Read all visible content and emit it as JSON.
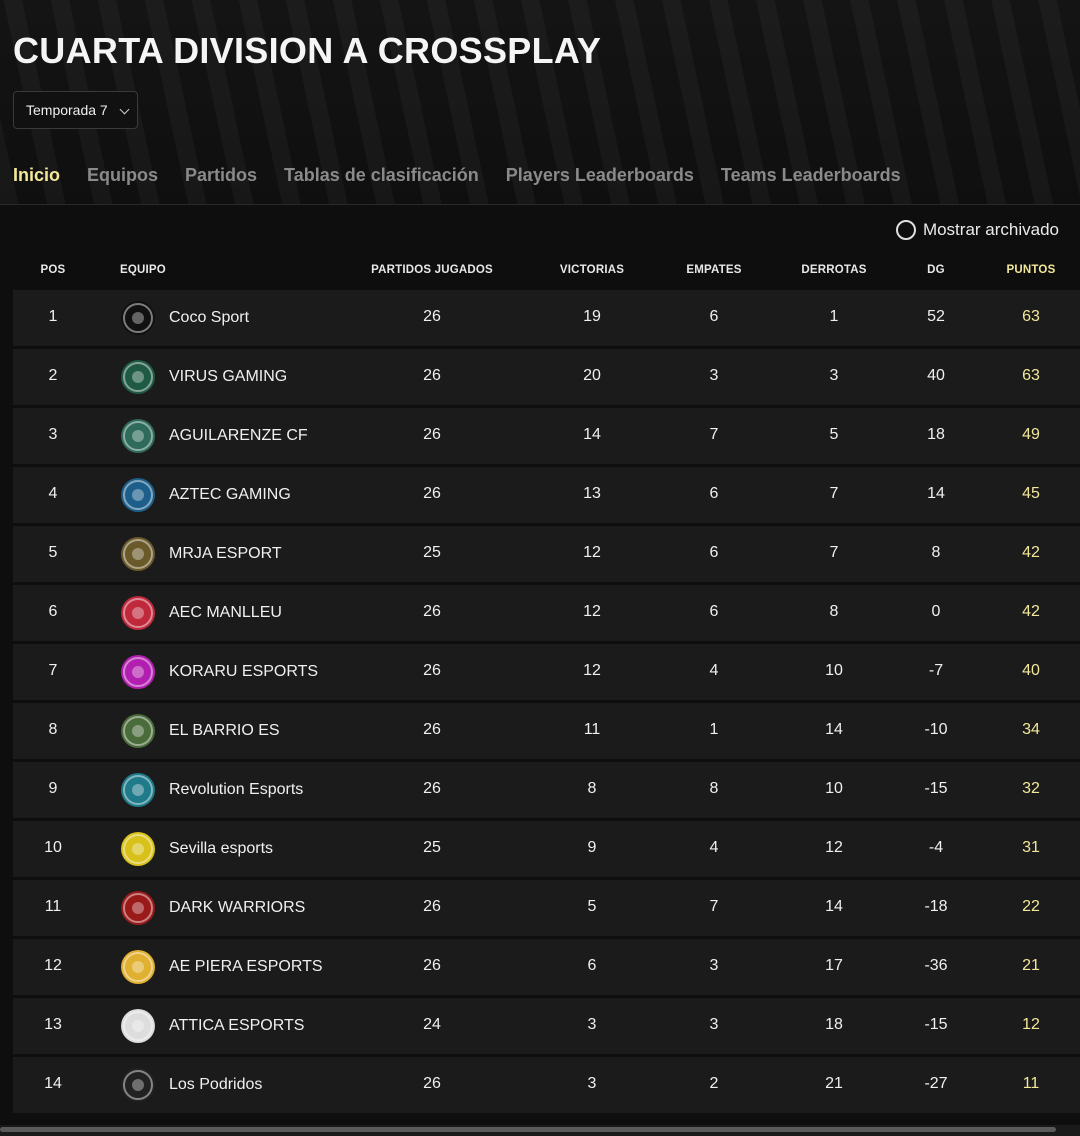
{
  "page": {
    "title": "CUARTA DIVISION A CROSSPLAY",
    "season": "Temporada 7"
  },
  "tabs": [
    {
      "label": "Inicio",
      "active": true
    },
    {
      "label": "Equipos",
      "active": false
    },
    {
      "label": "Partidos",
      "active": false
    },
    {
      "label": "Tablas de clasificación",
      "active": false
    },
    {
      "label": "Players Leaderboards",
      "active": false
    },
    {
      "label": "Teams Leaderboards",
      "active": false
    }
  ],
  "archive_toggle": {
    "label": "Mostrar archivado",
    "checked": false
  },
  "table": {
    "headers": {
      "pos": "POS",
      "team": "EQUIPO",
      "played": "PARTIDOS JUGADOS",
      "wins": "VICTORIAS",
      "draws": "EMPATES",
      "losses": "DERROTAS",
      "gd": "DG",
      "points": "PUNTOS"
    },
    "rows": [
      {
        "pos": "1",
        "team": "Coco Sport",
        "logo": "coco-sport-logo",
        "logo_color": "#111111",
        "played": "26",
        "wins": "19",
        "draws": "6",
        "losses": "1",
        "gd": "52",
        "points": "63"
      },
      {
        "pos": "2",
        "team": "VIRUS GAMING",
        "logo": "virus-gaming-logo",
        "logo_color": "#1f5a44",
        "played": "26",
        "wins": "20",
        "draws": "3",
        "losses": "3",
        "gd": "40",
        "points": "63"
      },
      {
        "pos": "3",
        "team": "AGUILARENZE CF",
        "logo": "aguilarenze-logo",
        "logo_color": "#2e6b5a",
        "played": "26",
        "wins": "14",
        "draws": "7",
        "losses": "5",
        "gd": "18",
        "points": "49"
      },
      {
        "pos": "4",
        "team": "AZTEC GAMING",
        "logo": "aztec-gaming-logo",
        "logo_color": "#1d5f8a",
        "played": "26",
        "wins": "13",
        "draws": "6",
        "losses": "7",
        "gd": "14",
        "points": "45"
      },
      {
        "pos": "5",
        "team": "MRJA ESPORT",
        "logo": "mrja-esport-logo",
        "logo_color": "#6a5a2a",
        "played": "25",
        "wins": "12",
        "draws": "6",
        "losses": "7",
        "gd": "8",
        "points": "42"
      },
      {
        "pos": "6",
        "team": "AEC MANLLEU",
        "logo": "aec-manlleu-logo",
        "logo_color": "#c0283c",
        "played": "26",
        "wins": "12",
        "draws": "6",
        "losses": "8",
        "gd": "0",
        "points": "42"
      },
      {
        "pos": "7",
        "team": "KORARU ESPORTS",
        "logo": "koraru-esports-logo",
        "logo_color": "#b21fb0",
        "played": "26",
        "wins": "12",
        "draws": "4",
        "losses": "10",
        "gd": "-7",
        "points": "40"
      },
      {
        "pos": "8",
        "team": "EL BARRIO ES",
        "logo": "el-barrio-logo",
        "logo_color": "#4a6b3a",
        "played": "26",
        "wins": "11",
        "draws": "1",
        "losses": "14",
        "gd": "-10",
        "points": "34"
      },
      {
        "pos": "9",
        "team": "Revolution Esports",
        "logo": "revolution-esports-logo",
        "logo_color": "#1f7a8a",
        "played": "26",
        "wins": "8",
        "draws": "8",
        "losses": "10",
        "gd": "-15",
        "points": "32"
      },
      {
        "pos": "10",
        "team": "Sevilla esports",
        "logo": "sevilla-esports-logo",
        "logo_color": "#d8c11a",
        "played": "25",
        "wins": "9",
        "draws": "4",
        "losses": "12",
        "gd": "-4",
        "points": "31"
      },
      {
        "pos": "11",
        "team": "DARK WARRIORS",
        "logo": "dark-warriors-logo",
        "logo_color": "#9a1a1a",
        "played": "26",
        "wins": "5",
        "draws": "7",
        "losses": "14",
        "gd": "-18",
        "points": "22"
      },
      {
        "pos": "12",
        "team": "AE PIERA ESPORTS",
        "logo": "ae-piera-logo",
        "logo_color": "#e0b030",
        "played": "26",
        "wins": "6",
        "draws": "3",
        "losses": "17",
        "gd": "-36",
        "points": "21"
      },
      {
        "pos": "13",
        "team": "ATTICA ESPORTS",
        "logo": "attica-esports-logo",
        "logo_color": "#dddddd",
        "played": "24",
        "wins": "3",
        "draws": "3",
        "losses": "18",
        "gd": "-15",
        "points": "12"
      },
      {
        "pos": "14",
        "team": "Los Podridos",
        "logo": "los-podridos-logo",
        "logo_color": "#222222",
        "played": "26",
        "wins": "3",
        "draws": "2",
        "losses": "21",
        "gd": "-27",
        "points": "11"
      }
    ]
  },
  "colors": {
    "accent": "#f3e89a",
    "row_bg": "#1b1b1b",
    "page_bg": "#0e0e0e"
  }
}
